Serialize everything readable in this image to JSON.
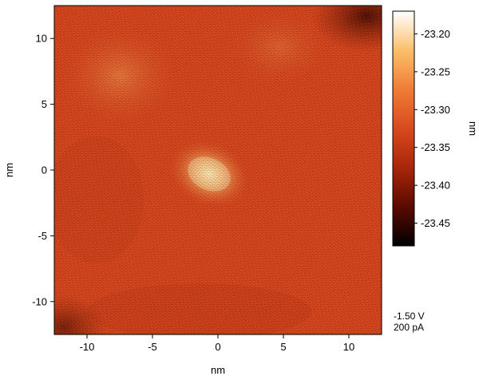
{
  "chart_data": {
    "type": "heatmap",
    "title": "",
    "xlabel": "nm",
    "ylabel": "nm",
    "xlim": [
      -12.5,
      12.5
    ],
    "ylim": [
      -12.5,
      12.5
    ],
    "x_ticks": [
      -10,
      -5,
      0,
      5,
      10
    ],
    "y_ticks": [
      -10,
      -5,
      0,
      5,
      10
    ],
    "x_tick_labels": [
      "-10",
      "-5",
      "0",
      "5",
      "10"
    ],
    "y_tick_labels": [
      "-10",
      "-5",
      "0",
      "5",
      "10"
    ],
    "colorbar": {
      "label": "nm",
      "range": [
        -23.48,
        -23.17
      ],
      "ticks": [
        -23.2,
        -23.25,
        -23.3,
        -23.35,
        -23.4,
        -23.45
      ],
      "tick_labels": [
        "-23.20",
        "-23.25",
        "-23.30",
        "-23.35",
        "-23.40",
        "-23.45"
      ],
      "colormap": [
        "#000000",
        "#5a0a00",
        "#a8260a",
        "#d84a1e",
        "#ef7c36",
        "#fbbf6a",
        "#ffffff"
      ]
    },
    "grid": false
  },
  "annotations": {
    "bias": "-1.50 V",
    "current": "200 pA"
  }
}
